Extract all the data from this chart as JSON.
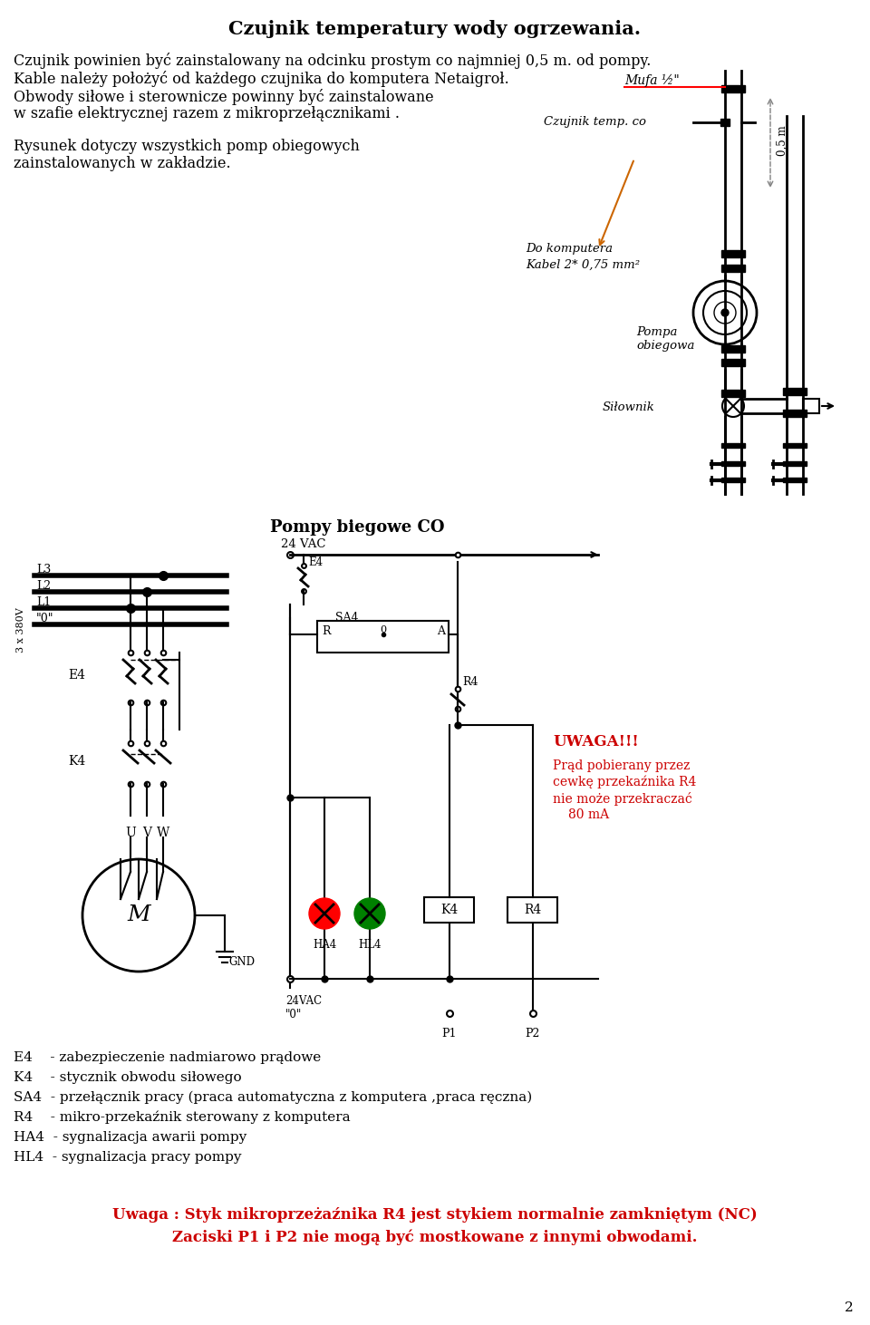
{
  "title": "Czujnik temperatury wody ogrzewania.",
  "page_bg": "#ffffff",
  "text_color": "#000000",
  "red_color": "#cc0000",
  "orange_color": "#cc6600",
  "section2_title": "Pompy biegowe CO",
  "line1": "Czujnik powinien być zainstalowany na odcinku prostym co najmniej 0,5 m. od pompy.",
  "line2": "Kable należy położyć od każdego czujnika do komputera Netaigroł.",
  "line3a": "Obwody siłowe i sterownicze powinny być zainstalowane",
  "line3b": "w szafie elektrycznej razem z mikroprzełącznikami .",
  "line4a": "Rysunek dotyczy wszystkich pomp obiegowych",
  "line4b": "zainstalowanych w zakładzie.",
  "legend_E4": "E4    - zabezpieczenie nadmiarowo prądowe",
  "legend_K4": "K4    - stycznik obwodu siłowego",
  "legend_SA4": "SA4  - przełącznik pracy (praca automatyczna z komputera ,praca ręczna)",
  "legend_R4": "R4    - mikro-przekaźnik sterowany z komputera",
  "legend_HA4": "HA4  - sygnalizacja awarii pompy",
  "legend_HL4": "HL4  - sygnalizacja pracy pompy",
  "uwaga_line1": "Uwaga : Styk mikroprzeżaźnika R4 jest stykiem normalnie zamkniętym (NC)",
  "uwaga_line2": "Zaciski P1 i P2 nie mogą być mostkowane z innymi obwodami.",
  "uwaga_box": "UWAGA!!!",
  "uwaga_red1": "Prąd pobierany przez",
  "uwaga_red2": "cewkę przekaźnika R4",
  "uwaga_red3": "nie może przekraczać",
  "uwaga_red4": "80 mA",
  "page_num": "2",
  "mufa_label": "Mufa ½\"",
  "czujnik_label": "Czujnik temp. co",
  "do_komputera": "Do komputera",
  "kabel_label": "Kabel 2* 0,75 mm²",
  "pompa_label": "Pompa\nobiegowa",
  "silownik_label": "Siłownik",
  "vac_label": "24 VAC",
  "vac0_label": "24VAC\n\"0\"",
  "gnd_label": "GND",
  "label_3x380v": "3 x 380V"
}
